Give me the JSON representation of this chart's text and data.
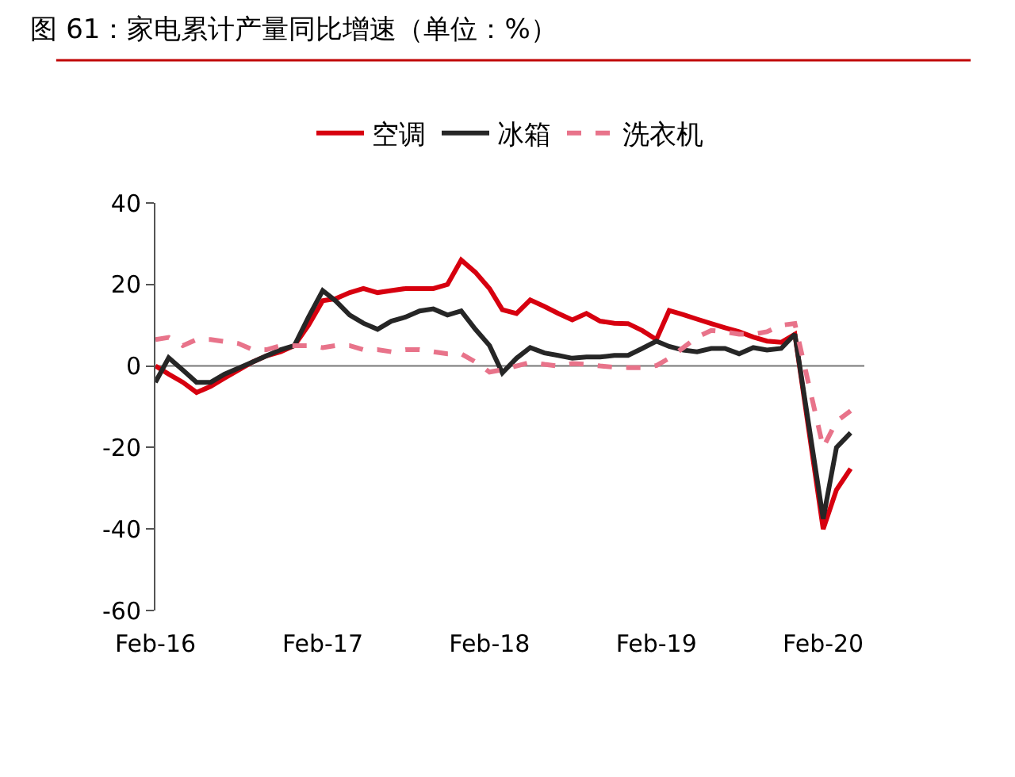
{
  "chart_data": {
    "type": "line",
    "title": "图 61：家电累计产量同比增速（单位：%）",
    "x": [
      "2016-02",
      "2016-03",
      "2016-04",
      "2016-05",
      "2016-06",
      "2016-07",
      "2016-08",
      "2016-09",
      "2016-10",
      "2016-11",
      "2016-12",
      "2017-01",
      "2017-02",
      "2017-03",
      "2017-04",
      "2017-05",
      "2017-06",
      "2017-07",
      "2017-08",
      "2017-09",
      "2017-10",
      "2017-11",
      "2017-12",
      "2018-01",
      "2018-02",
      "2018-03",
      "2018-04",
      "2018-05",
      "2018-06",
      "2018-07",
      "2018-08",
      "2018-09",
      "2018-10",
      "2018-11",
      "2018-12",
      "2019-01",
      "2019-02",
      "2019-03",
      "2019-04",
      "2019-05",
      "2019-06",
      "2019-07",
      "2019-08",
      "2019-09",
      "2019-10",
      "2019-11",
      "2019-12",
      "2020-01",
      "2020-02",
      "2020-03",
      "2020-04"
    ],
    "series": [
      {
        "name": "空调",
        "color": "#d7000f",
        "line_style": "solid",
        "values": [
          0,
          -2,
          -4,
          -6.5,
          -5,
          -3,
          -1,
          1,
          2.5,
          3.5,
          5,
          10,
          16,
          16.5,
          18,
          19,
          18,
          18.5,
          19,
          19,
          19,
          20,
          26,
          23,
          19,
          13.8,
          12.9,
          16.2,
          14.6,
          12.9,
          11.3,
          12.9,
          11,
          10.5,
          10.4,
          8.7,
          6.5,
          13.6,
          12.6,
          11.5,
          10.4,
          9.4,
          8.4,
          7.1,
          6.1,
          5.8,
          7.8,
          null,
          -40,
          -30.4,
          -25.2
        ]
      },
      {
        "name": "冰箱",
        "color": "#262626",
        "line_style": "solid",
        "values": [
          -4,
          2,
          -1,
          -4,
          -4,
          -2,
          -0.5,
          1,
          2.5,
          4,
          5,
          12,
          18.5,
          16,
          12.5,
          10.5,
          9,
          11,
          12,
          13.5,
          14,
          12.5,
          13.5,
          9,
          5,
          -1.7,
          1.9,
          4.5,
          3.2,
          2.6,
          1.9,
          2.2,
          2.2,
          2.6,
          2.6,
          4.3,
          6.1,
          4.8,
          3.9,
          3.5,
          4.3,
          4.3,
          3,
          4.5,
          3.9,
          4.3,
          7.8,
          null,
          -37.5,
          -20,
          -16.4
        ]
      },
      {
        "name": "洗衣机",
        "color": "#e8738a",
        "line_style": "dashed",
        "values": [
          6.5,
          7,
          5,
          6.5,
          6.5,
          6,
          5.5,
          4,
          4,
          5,
          5,
          5,
          4.5,
          5,
          5,
          4,
          4,
          3.5,
          4,
          4,
          3.5,
          3,
          3,
          1,
          -1.5,
          -0.9,
          0,
          0.9,
          0.4,
          0,
          0.6,
          0.4,
          0,
          -0.3,
          -0.4,
          -0.4,
          0.1,
          1.9,
          4.5,
          7.1,
          8.7,
          8.4,
          7.8,
          7.8,
          8.4,
          10,
          10.4,
          null,
          -20,
          -13.6,
          -11
        ]
      }
    ],
    "xlim": [
      "2016-02-01",
      "2020-05-01"
    ],
    "xticks": [
      {
        "value": "2016-02",
        "label": "Feb-16"
      },
      {
        "value": "2017-02",
        "label": "Feb-17"
      },
      {
        "value": "2018-02",
        "label": "Feb-18"
      },
      {
        "value": "2019-02",
        "label": "Feb-19"
      },
      {
        "value": "2020-02",
        "label": "Feb-20"
      }
    ],
    "ylim": [
      -60,
      40
    ],
    "yticks": [
      -60,
      -40,
      -20,
      0,
      20,
      40
    ],
    "ref_lines": [
      {
        "axis": "y",
        "value": 0,
        "color": "#777777",
        "line_style": "solid"
      }
    ],
    "grid": false,
    "legend": "top",
    "marker": "none"
  }
}
